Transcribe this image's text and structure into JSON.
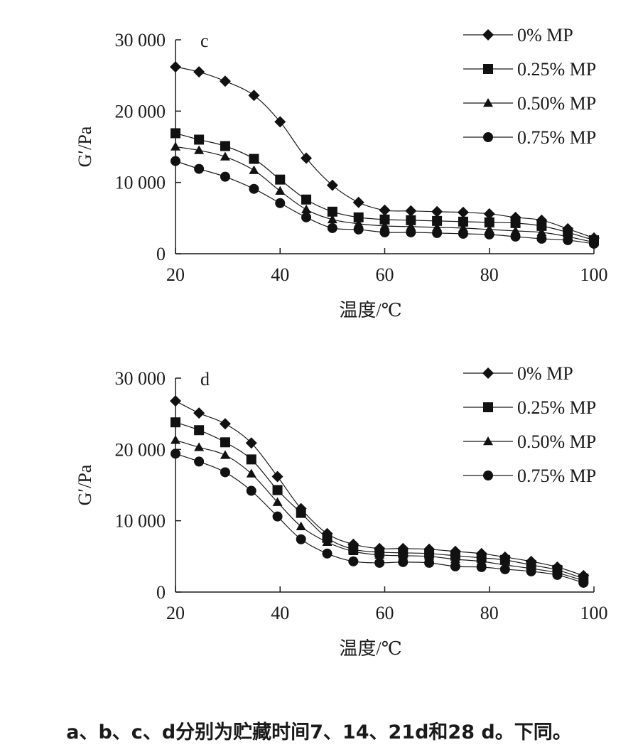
{
  "chart_data": [
    {
      "type": "line",
      "panel_label": "c",
      "ylabel": "G′/Pa",
      "xlabel": "温度/℃",
      "xlim": [
        20,
        100
      ],
      "ylim": [
        0,
        30000
      ],
      "x_ticks": [
        "20",
        "40",
        "60",
        "80",
        "100"
      ],
      "y_ticks": [
        "0",
        "10 000",
        "20 000",
        "30 000"
      ],
      "legend_position": "top-right",
      "series": [
        {
          "name": "0% MP",
          "marker": "diamond",
          "x": [
            20,
            24.5,
            29.5,
            35,
            40,
            45,
            50,
            55,
            60,
            65,
            70,
            75,
            80,
            85,
            90,
            95,
            100
          ],
          "y": [
            26200,
            25500,
            24200,
            22200,
            18500,
            13400,
            9600,
            7200,
            6100,
            6000,
            5900,
            5800,
            5600,
            5100,
            4700,
            3500,
            2200
          ]
        },
        {
          "name": "0.25% MP",
          "marker": "square",
          "x": [
            20,
            24.5,
            29.5,
            35,
            40,
            45,
            50,
            55,
            60,
            65,
            70,
            75,
            80,
            85,
            90,
            95,
            100
          ],
          "y": [
            16900,
            16000,
            15100,
            13300,
            10400,
            7600,
            5900,
            5100,
            4800,
            4700,
            4600,
            4500,
            4400,
            4300,
            3900,
            3000,
            1900
          ]
        },
        {
          "name": "0.50% MP",
          "marker": "triangle",
          "x": [
            20,
            24.5,
            29.5,
            35,
            40,
            45,
            50,
            55,
            60,
            65,
            70,
            75,
            80,
            85,
            90,
            95,
            100
          ],
          "y": [
            15000,
            14500,
            13600,
            11700,
            8800,
            6200,
            4800,
            4200,
            3900,
            3800,
            3700,
            3600,
            3400,
            3200,
            3000,
            2400,
            1600
          ]
        },
        {
          "name": "0.75% MP",
          "marker": "circle",
          "x": [
            20,
            24.5,
            29.5,
            35,
            40,
            45,
            50,
            55,
            60,
            65,
            70,
            75,
            80,
            85,
            90,
            95,
            100
          ],
          "y": [
            13000,
            11900,
            10800,
            9100,
            7100,
            5100,
            3600,
            3400,
            3000,
            3000,
            2900,
            2800,
            2700,
            2400,
            2100,
            1900,
            1400
          ]
        }
      ]
    },
    {
      "type": "line",
      "panel_label": "d",
      "ylabel": "G′/Pa",
      "xlabel": "温度/℃",
      "xlim": [
        20,
        100
      ],
      "ylim": [
        0,
        30000
      ],
      "x_ticks": [
        "20",
        "40",
        "60",
        "80",
        "100"
      ],
      "y_ticks": [
        "0",
        "10 000",
        "20 000",
        "30 000"
      ],
      "legend_position": "top-right",
      "series": [
        {
          "name": "0% MP",
          "marker": "diamond",
          "x": [
            20,
            24.5,
            29.5,
            34.5,
            39.5,
            44,
            49,
            54,
            59,
            63.5,
            68.5,
            73.5,
            78.5,
            83,
            88,
            93,
            98
          ],
          "y": [
            26800,
            25100,
            23600,
            20900,
            16200,
            11700,
            8200,
            6700,
            6100,
            6100,
            6000,
            5700,
            5400,
            4900,
            4300,
            3500,
            2300
          ]
        },
        {
          "name": "0.25% MP",
          "marker": "square",
          "x": [
            20,
            24.5,
            29.5,
            34.5,
            39.5,
            44,
            49,
            54,
            59,
            63.5,
            68.5,
            73.5,
            78.5,
            83,
            88,
            93,
            98
          ],
          "y": [
            23800,
            22700,
            21000,
            18600,
            14300,
            11100,
            7600,
            6000,
            5600,
            5500,
            5400,
            5100,
            4800,
            4500,
            3800,
            3100,
            1900
          ]
        },
        {
          "name": "0.50% MP",
          "marker": "triangle",
          "x": [
            20,
            24.5,
            29.5,
            34.5,
            39.5,
            44,
            49,
            54,
            59,
            63.5,
            68.5,
            73.5,
            78.5,
            83,
            88,
            93,
            98
          ],
          "y": [
            21300,
            20300,
            19200,
            16600,
            12600,
            9200,
            7000,
            5700,
            5200,
            5100,
            5000,
            4600,
            4300,
            3800,
            3300,
            2700,
            1600
          ]
        },
        {
          "name": "0.75% MP",
          "marker": "circle",
          "x": [
            20,
            24.5,
            29.5,
            34.5,
            39.5,
            44,
            49,
            54,
            59,
            63.5,
            68.5,
            73.5,
            78.5,
            83,
            88,
            93,
            98
          ],
          "y": [
            19400,
            18300,
            16800,
            14200,
            10600,
            7400,
            5400,
            4300,
            4100,
            4200,
            4100,
            3600,
            3500,
            3200,
            2900,
            2400,
            1300
          ]
        }
      ]
    }
  ],
  "caption": "a、b、c、d分别为贮藏时间7、14、21d和28 d。下同。"
}
